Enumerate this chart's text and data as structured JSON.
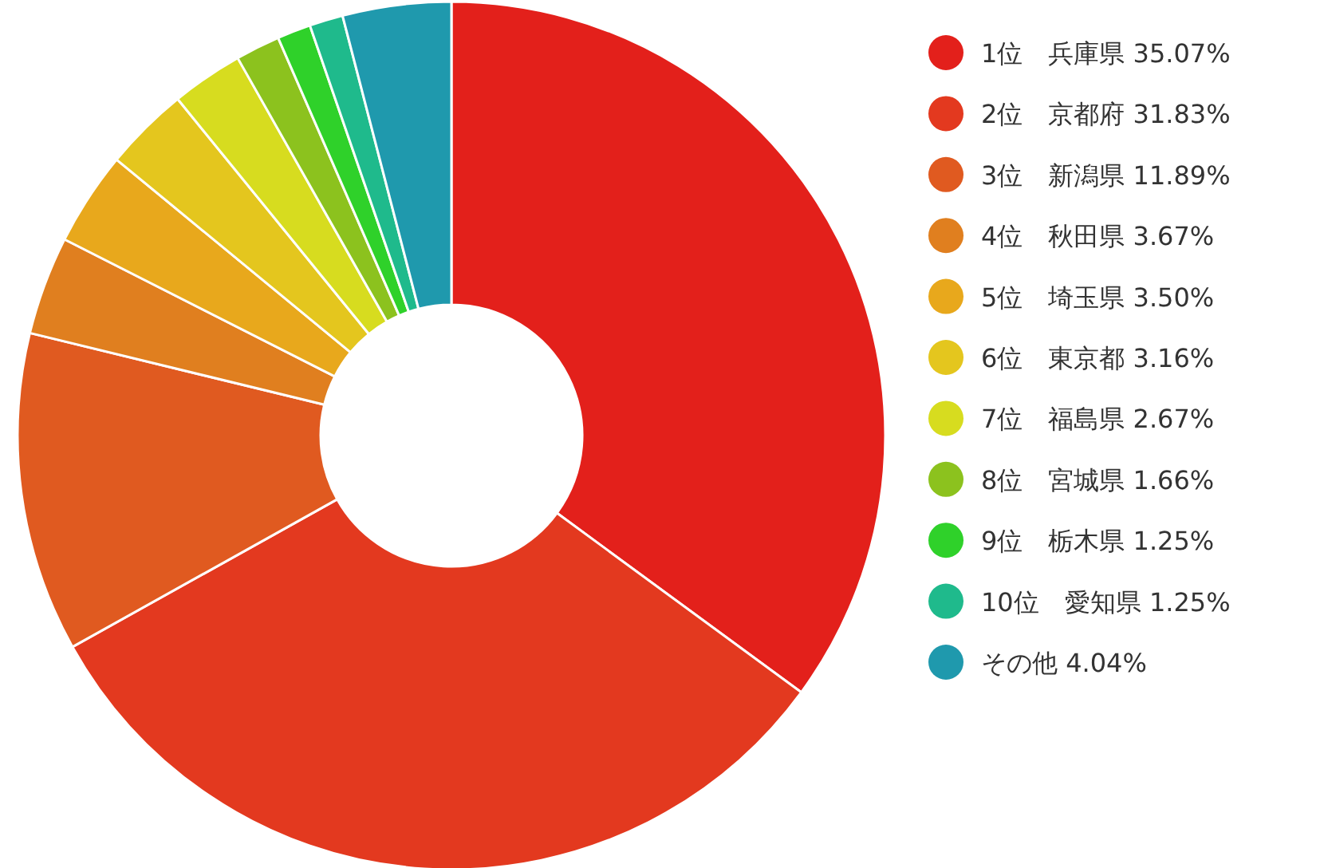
{
  "chart_data": {
    "type": "donut",
    "legend": "right",
    "categories": [
      "1位　兵庫県",
      "2位　京都府",
      "3位　新潟県",
      "4位　秋田県",
      "5位　埼玉県",
      "6位　東京都",
      "7位　福島県",
      "8位　宮城県",
      "9位　栃木県",
      "10位　愛知県",
      "その他"
    ],
    "values": [
      35.07,
      31.83,
      11.89,
      3.67,
      3.5,
      3.16,
      2.67,
      1.66,
      1.25,
      1.25,
      4.04
    ],
    "value_labels": [
      "35.07%",
      "31.83%",
      "11.89%",
      "3.67%",
      "3.50%",
      "3.16%",
      "2.67%",
      "1.66%",
      "1.25%",
      "1.25%",
      "4.04%"
    ],
    "colors": [
      "#e3201b",
      "#e3391f",
      "#e05a20",
      "#e07f1f",
      "#e8a81c",
      "#e4c61e",
      "#d7dc1f",
      "#8cc21e",
      "#2fd12a",
      "#1fba8c",
      "#1f99ad"
    ]
  }
}
